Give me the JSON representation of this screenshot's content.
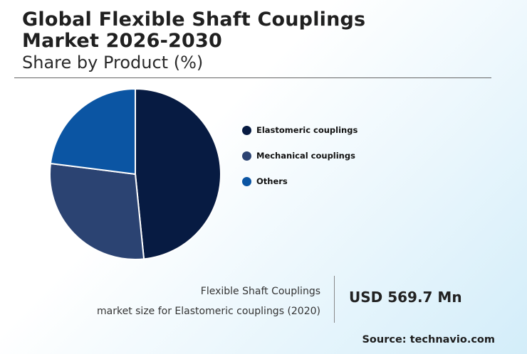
{
  "chart_data": {
    "type": "pie",
    "title": "Global Flexible Shaft Couplings Market 2026-2030",
    "subtitle": "Share by Product (%)",
    "series": [
      {
        "name": "Elastomeric couplings",
        "value": 48.4,
        "color": "#071b42"
      },
      {
        "name": "Mechanical couplings",
        "value": 28.6,
        "color": "#2b4372"
      },
      {
        "name": "Others",
        "value": 23.0,
        "color": "#0b55a3"
      }
    ],
    "legend_position": "right"
  },
  "title_line1": "Global Flexible Shaft Couplings",
  "title_line2": "Market 2026-2030",
  "subtitle": "Share by Product (%)",
  "market": {
    "label_line1": "Flexible Shaft Couplings",
    "label_line2": "market size for Elastomeric couplings (2020)",
    "value": "USD 569.7 Mn"
  },
  "source": "Source: technavio.com"
}
